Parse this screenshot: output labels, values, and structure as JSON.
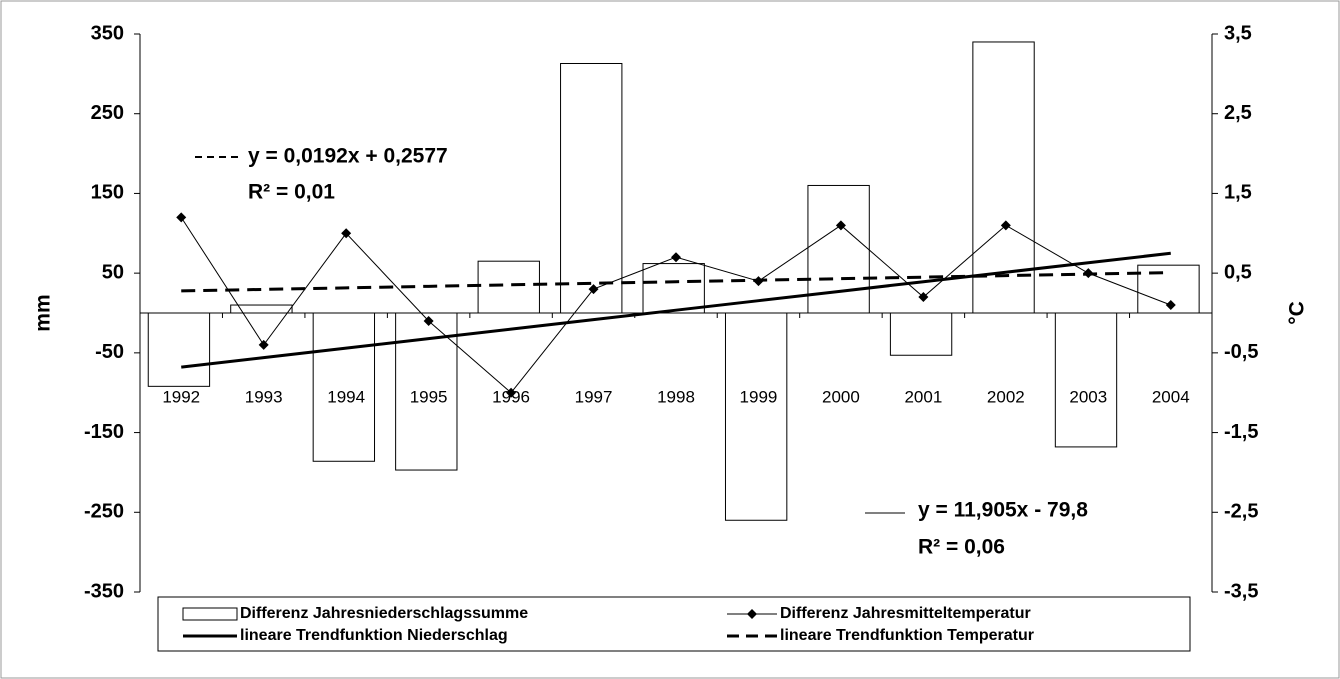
{
  "chart_data": {
    "type": "bar",
    "categories": [
      "1992",
      "1993",
      "1994",
      "1995",
      "1996",
      "1997",
      "1998",
      "1999",
      "2000",
      "2001",
      "2002",
      "2003",
      "2004"
    ],
    "ylabel": "mm",
    "y2label": "°C",
    "ylim": [
      -350,
      350
    ],
    "yticks": [
      350,
      250,
      150,
      50,
      -50,
      -150,
      -250,
      -350
    ],
    "y2lim": [
      -3.5,
      3.5
    ],
    "y2ticks": [
      {
        "value": 3.5,
        "label": "3,5"
      },
      {
        "value": 2.5,
        "label": "2,5"
      },
      {
        "value": 1.5,
        "label": "1,5"
      },
      {
        "value": 0.5,
        "label": "0,5"
      },
      {
        "value": -0.5,
        "label": "-0,5"
      },
      {
        "value": -1.5,
        "label": "-1,5"
      },
      {
        "value": -2.5,
        "label": "-2,5"
      },
      {
        "value": -3.5,
        "label": "-3,5"
      }
    ],
    "series": [
      {
        "name": "Differenz Jahresniederschlagssumme",
        "type": "bar",
        "color": "#ffffff",
        "values": [
          -92,
          10,
          -186,
          -197,
          65,
          313,
          62,
          -260,
          160,
          -53,
          340,
          -168,
          60
        ]
      },
      {
        "name": "Differenz Jahresmitteltemperatur",
        "type": "line",
        "axis": "y2",
        "color": "#000000",
        "marker": "diamond",
        "values": [
          1.2,
          -0.4,
          1.0,
          -0.1,
          -1.0,
          0.3,
          0.7,
          0.4,
          1.1,
          0.2,
          1.1,
          0.5,
          0.1
        ]
      },
      {
        "name": "lineare Trendfunktion Niederschlag",
        "type": "line",
        "color": "#000000",
        "dash": false,
        "values": [
          -67.895,
          -55.99,
          -44.085,
          -32.18,
          -20.275,
          -8.37,
          3.535,
          15.44,
          27.345,
          39.25,
          51.155,
          63.06,
          74.965
        ]
      },
      {
        "name": "lineare Trendfunktion Temperatur",
        "type": "line",
        "axis": "y2",
        "color": "#000000",
        "dash": true,
        "values": [
          0.2769,
          0.2961,
          0.3153,
          0.3345,
          0.3537,
          0.3729,
          0.3921,
          0.4113,
          0.4305,
          0.4497,
          0.4689,
          0.4881,
          0.5073
        ]
      }
    ],
    "annotations": [
      "y = 0,0192x + 0,2577",
      "R² = 0,01",
      "y = 11,905x - 79,8",
      "R² = 0,06"
    ]
  }
}
